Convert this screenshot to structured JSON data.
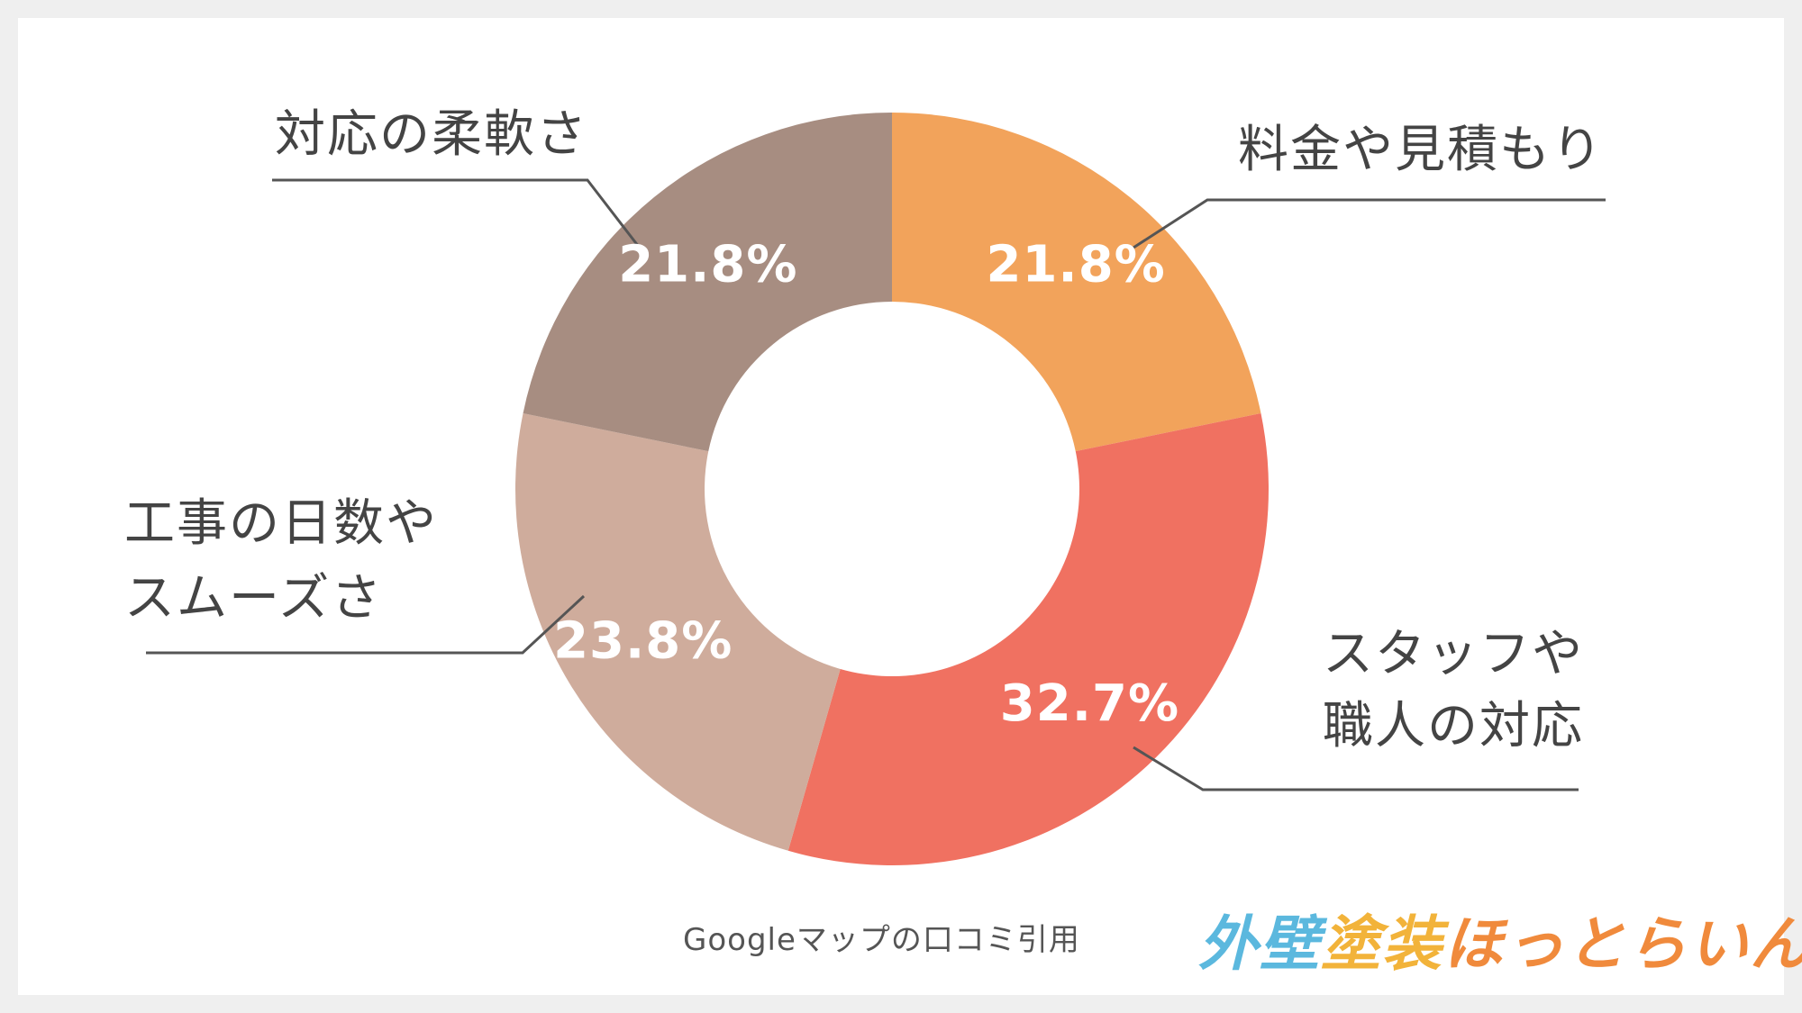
{
  "chart_data": {
    "type": "pie",
    "donut": true,
    "categories": [
      "料金や見積もり",
      "スタッフや職人の対応",
      "工事の日数やスムーズさ",
      "対応の柔軟さ"
    ],
    "values": [
      21.8,
      32.7,
      23.8,
      21.8
    ],
    "value_labels": [
      "21.8%",
      "32.7%",
      "23.8%",
      "21.8%"
    ],
    "colors": [
      "#f2a35b",
      "#f07161",
      "#cfac9c",
      "#a78d81"
    ],
    "label_lines": [
      [
        "料金や見積もり"
      ],
      [
        "スタッフや",
        "職人の対応"
      ],
      [
        "工事の日数や",
        "スムーズさ"
      ],
      [
        "対応の柔軟さ"
      ]
    ],
    "start_angle_deg": 0,
    "direction": "clockwise"
  },
  "source_note": "Googleマップの口コミ引用",
  "logo": {
    "text": "外壁塗装ほっとらいん",
    "part1": "外壁",
    "part2": "塗装",
    "part3": "ほっとらいん"
  }
}
